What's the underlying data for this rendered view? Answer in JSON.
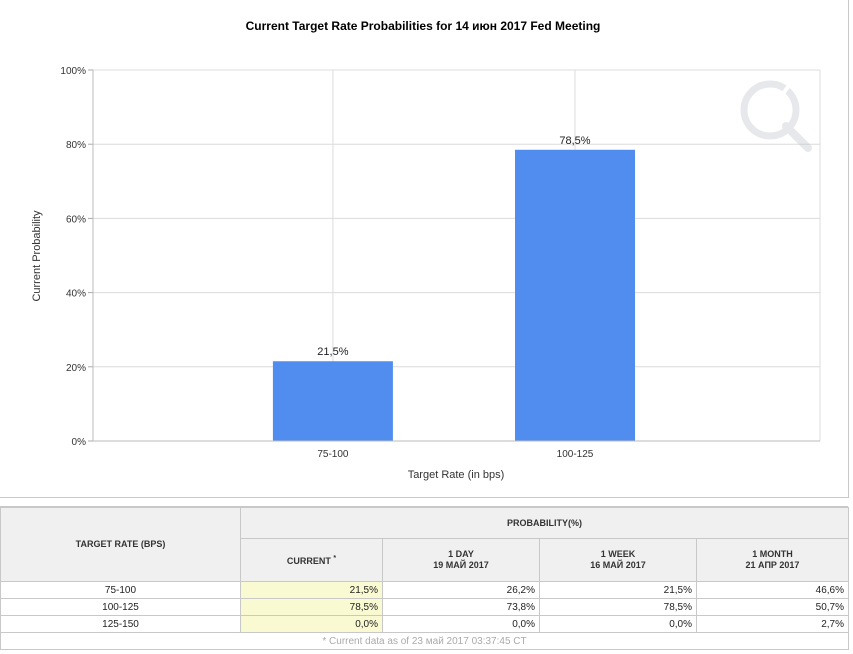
{
  "chart_data": {
    "type": "bar",
    "title": "Current Target Rate Probabilities for 14 июн 2017 Fed Meeting",
    "xlabel": "Target Rate (in bps)",
    "ylabel": "Current Probability",
    "categories": [
      "75-100",
      "100-125"
    ],
    "values": [
      21.5,
      78.5
    ],
    "data_labels": [
      "21,5%",
      "78,5%"
    ],
    "ylim": [
      0,
      100
    ],
    "yticks": [
      "0%",
      "20%",
      "40%",
      "60%",
      "80%",
      "100%"
    ],
    "grid": true,
    "bar_color": "#518def"
  },
  "table": {
    "target_header": "TARGET RATE (BPS)",
    "probability_header": "PROBABILITY(%)",
    "columns": [
      {
        "line1": "CURRENT",
        "line2": "",
        "asterisk": "*"
      },
      {
        "line1": "1 DAY",
        "line2": "19 МАЙ 2017"
      },
      {
        "line1": "1 WEEK",
        "line2": "16 МАЙ 2017"
      },
      {
        "line1": "1 MONTH",
        "line2": "21 АПР 2017"
      }
    ],
    "rows": [
      {
        "rate": "75-100",
        "values": [
          "21,5%",
          "26,2%",
          "21,5%",
          "46,6%"
        ]
      },
      {
        "rate": "100-125",
        "values": [
          "78,5%",
          "73,8%",
          "78,5%",
          "50,7%"
        ]
      },
      {
        "rate": "125-150",
        "values": [
          "0,0%",
          "0,0%",
          "0,0%",
          "2,7%"
        ]
      }
    ],
    "footnote": "* Current data as of 23 май 2017 03:37:45 CT"
  }
}
